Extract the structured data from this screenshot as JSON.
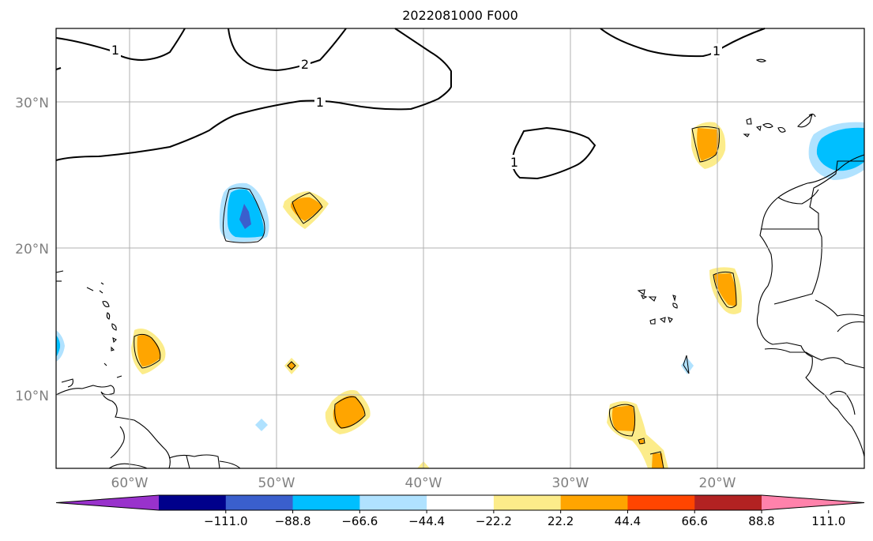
{
  "title": "2022081000 F000",
  "lat_ticks": [
    "30°N",
    "20°N",
    "10°N"
  ],
  "lon_ticks": [
    "60°W",
    "50°W",
    "40°W",
    "30°W",
    "20°W"
  ],
  "contour_labels": [
    "1",
    "2",
    "1",
    "1",
    "1"
  ],
  "colorbar": {
    "colors": [
      "#9932cc",
      "#00008b",
      "#3a5fcd",
      "#00bfff",
      "#b0e2ff",
      "#ffffff",
      "#fcec8a",
      "#ffa500",
      "#ff4500",
      "#b22222",
      "#ff82ab"
    ],
    "tick_labels": [
      "−111.0",
      "−88.8",
      "−66.6",
      "−44.4",
      "−22.2",
      "22.2",
      "44.4",
      "66.6",
      "88.8",
      "111.0"
    ]
  },
  "chart_data": {
    "type": "heatmap",
    "title": "2022081000 F000",
    "xlabel": "",
    "ylabel": "",
    "lon_range": [
      -65,
      -10
    ],
    "lat_range": [
      5,
      35
    ],
    "grid": true,
    "levels": [
      -111.0,
      -88.8,
      -66.6,
      -44.4,
      -22.2,
      22.2,
      44.4,
      66.6,
      88.8,
      111.0
    ],
    "contour_line_levels": [
      1,
      2
    ]
  }
}
